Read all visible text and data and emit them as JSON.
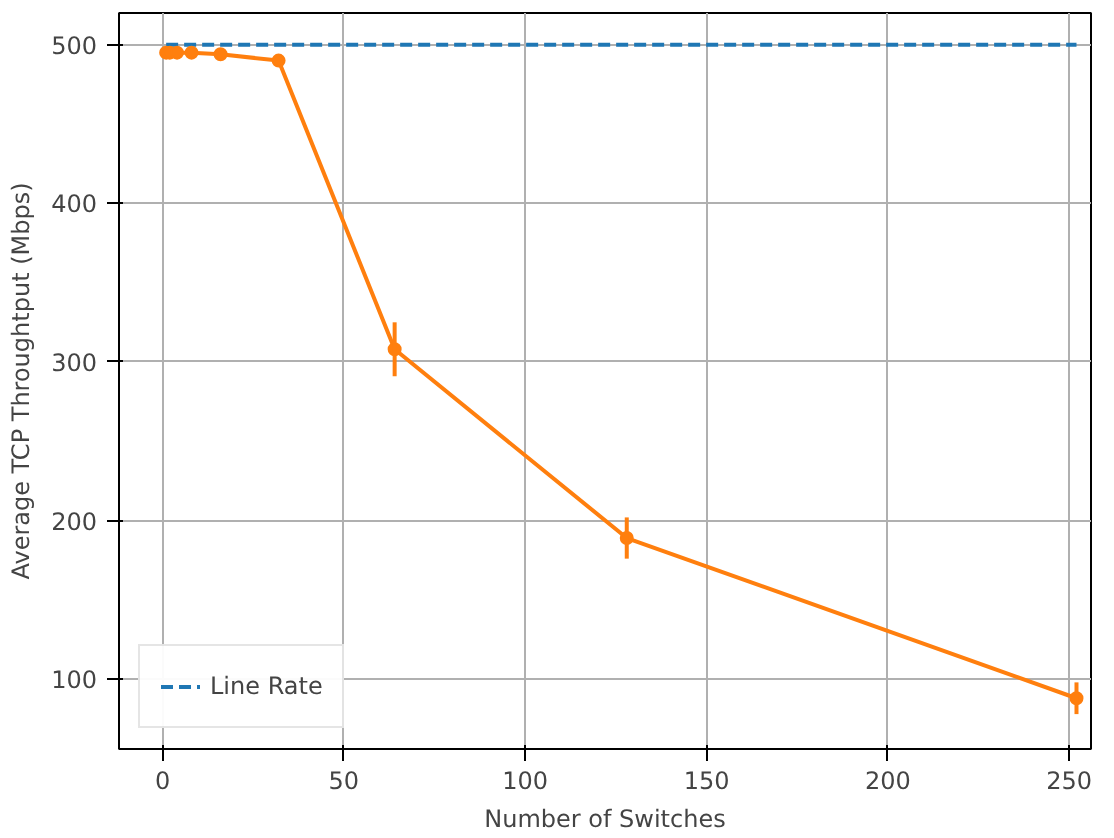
{
  "chart_data": {
    "type": "line",
    "xlabel": "Number of Switches",
    "ylabel": "Average TCP Throughtput (Mbps)",
    "xlim": [
      -12,
      256
    ],
    "xticks": [
      0,
      50,
      100,
      150,
      200,
      250
    ],
    "ylim": [
      56,
      520
    ],
    "yticks": [
      100,
      200,
      300,
      400,
      500
    ],
    "grid": true,
    "legend": "bottom left",
    "series": [
      {
        "name": "Line Rate",
        "color": "#1f77b4",
        "x": [
          1,
          252
        ],
        "values": [
          500,
          500
        ],
        "line_style": "dashed",
        "marker": "none"
      },
      {
        "color": "#ff7f0e",
        "x": [
          1,
          2,
          4,
          8,
          16,
          32,
          64,
          128,
          252
        ],
        "values": [
          495,
          495,
          495,
          495,
          494,
          490,
          308,
          189,
          88
        ],
        "errors": [
          null,
          null,
          null,
          null,
          null,
          null,
          17,
          13,
          10
        ],
        "line_style": "solid",
        "marker": "circle"
      }
    ]
  }
}
